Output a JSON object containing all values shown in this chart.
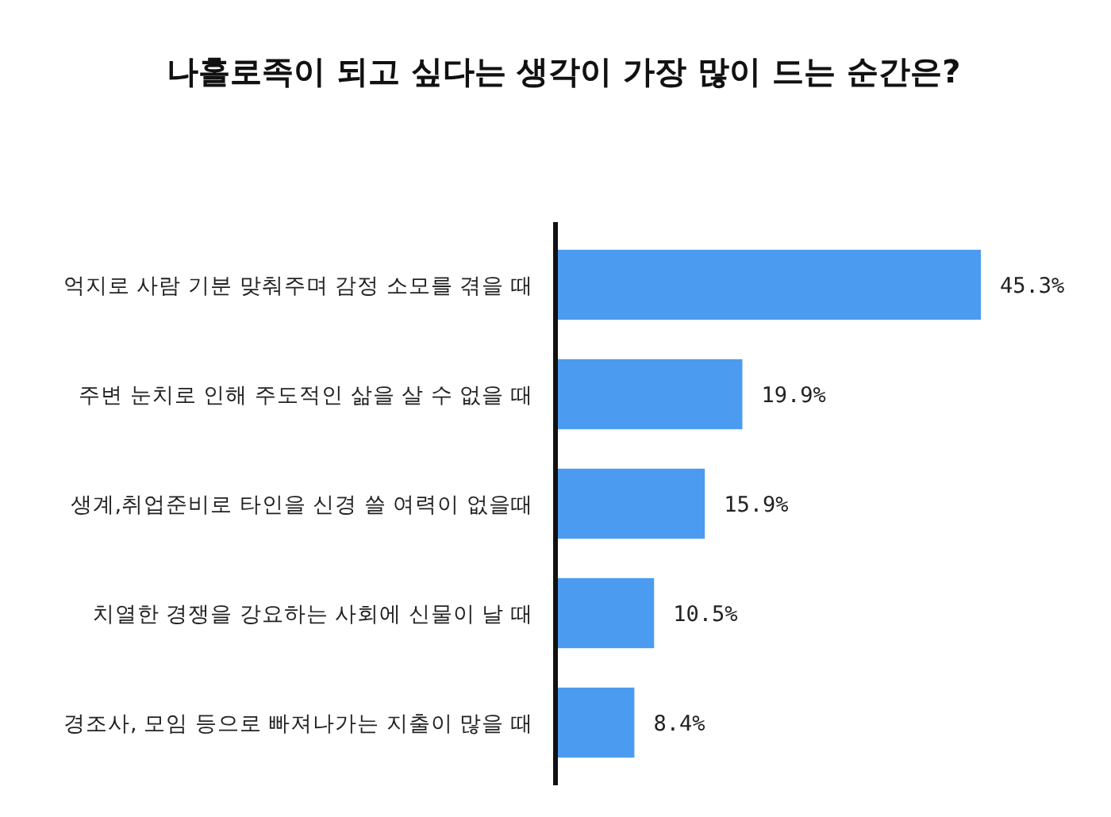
{
  "chart_data": {
    "type": "bar",
    "orientation": "horizontal",
    "title": "나홀로족이 되고 싶다는 생각이 가장 많이 드는 순간은?",
    "categories": [
      "억지로 사람 기분 맞춰주며 감정 소모를 겪을 때",
      "주변 눈치로 인해 주도적인 삶을 살 수 없을 때",
      "생계,취업준비로 타인을 신경 쓸 여력이 없을때",
      "치열한 경쟁을 강요하는 사회에 신물이 날 때",
      "경조사, 모임 등으로 빠져나가는 지출이 많을 때"
    ],
    "values": [
      45.3,
      19.9,
      15.9,
      10.5,
      8.4
    ],
    "value_labels": [
      "45.3%",
      "19.9%",
      "15.9%",
      "10.5%",
      "8.4%"
    ],
    "color": "#4b9cf0"
  }
}
